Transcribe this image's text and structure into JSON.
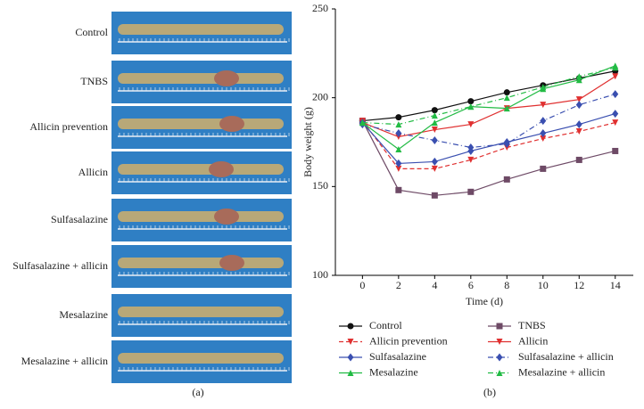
{
  "panel_a": {
    "labels": [
      "Control",
      "TNBS",
      "Allicin prevention",
      "Allicin",
      "Sulfasalazine",
      "Sulfasalazine + allicin",
      "Mesalazine",
      "Mesalazine + allicin"
    ],
    "caption": "(a)"
  },
  "chart_data": {
    "type": "line",
    "caption": "(b)",
    "xlabel": "Time (d)",
    "ylabel": "Body weight (g)",
    "x": [
      0,
      2,
      4,
      6,
      8,
      10,
      12,
      14
    ],
    "xlim": [
      -1.5,
      15
    ],
    "xticks": [
      0,
      2,
      4,
      6,
      8,
      10,
      12,
      14
    ],
    "ylim": [
      100,
      250
    ],
    "yticks": [
      100,
      150,
      200,
      250
    ],
    "series": [
      {
        "name": "Control",
        "color": "#111111",
        "dash": "solid",
        "marker": "circle",
        "values": [
          187,
          189,
          193,
          198,
          203,
          207,
          211,
          215
        ]
      },
      {
        "name": "TNBS",
        "color": "#6e4a66",
        "dash": "solid",
        "marker": "square",
        "values": [
          187,
          148,
          145,
          147,
          154,
          160,
          165,
          170
        ]
      },
      {
        "name": "Allicin prevention",
        "color": "#e03030",
        "dash": "dashed",
        "marker": "down",
        "values": [
          187,
          160,
          160,
          165,
          172,
          177,
          181,
          186
        ]
      },
      {
        "name": "Allicin",
        "color": "#e03030",
        "dash": "solid",
        "marker": "down",
        "values": [
          186,
          178,
          182,
          185,
          194,
          196,
          199,
          212
        ]
      },
      {
        "name": "Sulfasalazine",
        "color": "#3a4fb0",
        "dash": "solid",
        "marker": "diamond",
        "values": [
          186,
          163,
          164,
          170,
          175,
          180,
          185,
          191
        ]
      },
      {
        "name": "Sulfasalazine + allicin",
        "color": "#3a4fb0",
        "dash": "dashdot",
        "marker": "diamond",
        "values": [
          185,
          180,
          176,
          172,
          174,
          187,
          196,
          202
        ]
      },
      {
        "name": "Mesalazine",
        "color": "#22bb44",
        "dash": "solid",
        "marker": "up",
        "values": [
          186,
          171,
          186,
          195,
          194,
          205,
          210,
          218
        ]
      },
      {
        "name": "Mesalazine + allicin",
        "color": "#22bb44",
        "dash": "dashdot",
        "marker": "up",
        "values": [
          186,
          185,
          190,
          195,
          200,
          206,
          212,
          217
        ]
      }
    ]
  }
}
